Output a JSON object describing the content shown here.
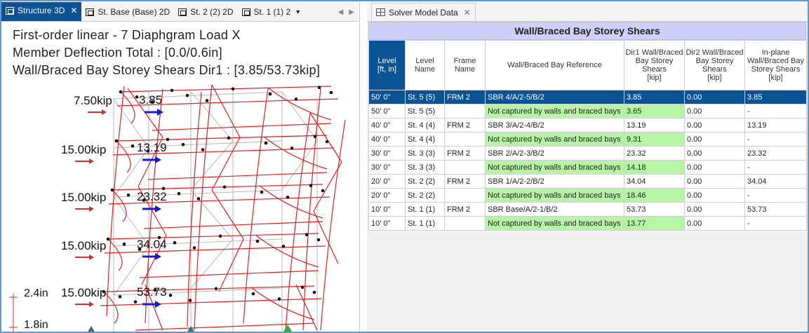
{
  "left_tabs": [
    {
      "label": "Structure 3D",
      "active": true,
      "closable": true
    },
    {
      "label": "St. Base (Base) 2D",
      "active": false,
      "closable": false
    },
    {
      "label": "St. 2 (2) 2D",
      "active": false,
      "closable": false
    },
    {
      "label": "St. 1 (1) 2",
      "active": false,
      "closable": false
    }
  ],
  "right_tabs": [
    {
      "label": "Solver Model Data",
      "closable": true
    }
  ],
  "viewport": {
    "line1": "First-order linear - 7 Diaphgram Load X",
    "line2": "Member Deflection Total : [0.0/0.6in]",
    "line3": "Wall/Braced Bay Storey Shears Dir1 : [3.85/53.73kip]",
    "loads": [
      "7.50kip",
      "15.00kip",
      "15.00kip",
      "15.00kip",
      "15.00kip"
    ],
    "shears": [
      "3.85",
      "13.19",
      "23.32",
      "34.04",
      "53.73"
    ],
    "scale": [
      "2.4in",
      "1.8in"
    ],
    "colors": {
      "members": "#e02020",
      "load_arrow": "#d03030",
      "shear_arrow": "#1a1acc",
      "grid": "#b8b8b8",
      "support": "#3aa53a"
    }
  },
  "table": {
    "title": "Wall/Braced Bay Storey Shears",
    "headers": [
      {
        "line1": "Level",
        "line2": "[ft, in]"
      },
      {
        "line1": "Level",
        "line2": "Name"
      },
      {
        "line1": "Frame",
        "line2": "Name"
      },
      {
        "line1": "Wall/Braced Bay Reference",
        "line2": ""
      },
      {
        "line1": "Dir1 Wall/Braced Bay Storey Shears",
        "line2": "[kip]"
      },
      {
        "line1": "Dir2 Wall/Braced Bay Storey Shears",
        "line2": "[kip]"
      },
      {
        "line1": "In-plane Wall/Braced Bay Storey Shears",
        "line2": "[kip]"
      }
    ],
    "rows": [
      {
        "level": "50’ 0”",
        "name": "St. 5 (5)",
        "frame": "FRM 2",
        "ref": "SBR 4/A/2-5/B/2",
        "dir1": "3.85",
        "dir2": "0.00",
        "inplane": "3.85",
        "selected": true
      },
      {
        "level": "50’ 0”",
        "name": "St. 5 (5)",
        "frame": "",
        "ref": "Not captured by walls and braced bays",
        "dir1": "3.65",
        "dir2": "0.00",
        "inplane": "-",
        "green": true
      },
      {
        "level": "40’ 0”",
        "name": "St. 4 (4)",
        "frame": "FRM 2",
        "ref": "SBR 3/A/2-4/B/2",
        "dir1": "13.19",
        "dir2": "0.00",
        "inplane": "13.19"
      },
      {
        "level": "40’ 0”",
        "name": "St. 4 (4)",
        "frame": "",
        "ref": "Not captured by walls and braced bays",
        "dir1": "9.31",
        "dir2": "0.00",
        "inplane": "-",
        "green": true
      },
      {
        "level": "30’ 0”",
        "name": "St. 3 (3)",
        "frame": "FRM 2",
        "ref": "SBR 2/A/2-3/B/2",
        "dir1": "23.32",
        "dir2": "0.00",
        "inplane": "23.32"
      },
      {
        "level": "30’ 0”",
        "name": "St. 3 (3)",
        "frame": "",
        "ref": "Not captured by walls and braced bays",
        "dir1": "14.18",
        "dir2": "0.00",
        "inplane": "-",
        "green": true
      },
      {
        "level": "20’ 0”",
        "name": "St. 2 (2)",
        "frame": "FRM 2",
        "ref": "SBR 1/A/2-2/B/2",
        "dir1": "34.04",
        "dir2": "0.00",
        "inplane": "34.04"
      },
      {
        "level": "20’ 0”",
        "name": "St. 2 (2)",
        "frame": "",
        "ref": "Not captured by walls and braced bays",
        "dir1": "18.46",
        "dir2": "0.00",
        "inplane": "-",
        "green": true
      },
      {
        "level": "10’ 0”",
        "name": "St. 1 (1)",
        "frame": "FRM 2",
        "ref": "SBR Base/A/2-1/B/2",
        "dir1": "53.73",
        "dir2": "0.00",
        "inplane": "53.73"
      },
      {
        "level": "10’ 0”",
        "name": "St. 1 (1)",
        "frame": "",
        "ref": "Not captured by walls and braced bays",
        "dir1": "13.77",
        "dir2": "0.00",
        "inplane": "-",
        "green": true
      }
    ]
  }
}
